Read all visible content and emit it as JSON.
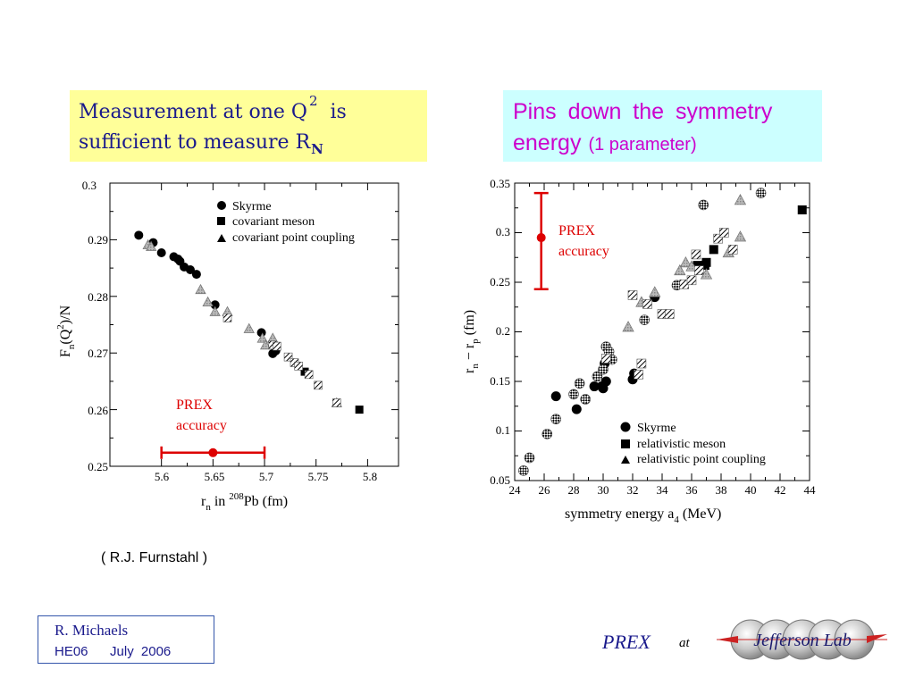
{
  "left_callout": {
    "line1_text": "Measurement  at  one  Q",
    "line1_sup": "2",
    "line1_end": "is",
    "line2_text": "sufficient  to  measure  R",
    "line2_sub": "N"
  },
  "right_callout": {
    "line1": "Pins  down  the  symmetry",
    "line2_a": "energy",
    "line2_b": "(1 parameter)"
  },
  "citation": "( R.J.  Furnstahl )",
  "author_box": {
    "name": "R.  Michaels",
    "conference": "HE06",
    "date": "July  2006"
  },
  "footer": {
    "prex": "PREX",
    "at": "at",
    "logo_text": "Jefferson Lab"
  },
  "colors": {
    "yellow_box": "#ffff99",
    "cyan_box": "#ccffff",
    "magenta_text": "#cc00cc",
    "navy_text": "#1a1a8c",
    "prex_red": "#dd0000"
  },
  "chart_data": [
    {
      "type": "scatter",
      "title": "",
      "xlabel": "r_n in 208Pb (fm)",
      "ylabel": "F_n(Q^2)/N",
      "xlim": [
        5.55,
        5.83
      ],
      "ylim": [
        0.25,
        0.3
      ],
      "x_ticks": [
        "5.6",
        "5.65",
        "5.7",
        "5.75",
        "5.8"
      ],
      "y_ticks": [
        "0.25",
        "0.26",
        "0.27",
        "0.28",
        "0.29",
        "0.3"
      ],
      "legend_position": "top-right",
      "legend": [
        "Skyrme",
        "covariant meson",
        "covariant point coupling"
      ],
      "annotation": {
        "line1": "PREX",
        "line2": "accuracy"
      },
      "error_bar": {
        "x": 5.65,
        "xmin": 5.6,
        "xmax": 5.7,
        "y": 0.2524
      },
      "series": [
        {
          "name": "Skyrme",
          "marker": "circle",
          "points": [
            [
              5.578,
              0.2908
            ],
            [
              5.592,
              0.2895
            ],
            [
              5.6,
              0.2877
            ],
            [
              5.612,
              0.287
            ],
            [
              5.616,
              0.2866
            ],
            [
              5.618,
              0.2862
            ],
            [
              5.622,
              0.2852
            ],
            [
              5.628,
              0.2847
            ],
            [
              5.634,
              0.2839
            ],
            [
              5.652,
              0.2785
            ],
            [
              5.697,
              0.2736
            ],
            [
              5.711,
              0.2704
            ],
            [
              5.708,
              0.2699
            ]
          ]
        },
        {
          "name": "covariant meson",
          "marker": "square",
          "points": [
            [
              5.739,
              0.2667
            ],
            [
              5.792,
              0.26
            ]
          ]
        },
        {
          "name": "covariant point coupling",
          "marker": "triangle",
          "points": [
            [
              5.587,
              0.2891
            ],
            [
              5.59,
              0.2888
            ],
            [
              5.638,
              0.2812
            ],
            [
              5.645,
              0.279
            ],
            [
              5.652,
              0.2773
            ],
            [
              5.664,
              0.2773
            ],
            [
              5.685,
              0.2743
            ],
            [
              5.698,
              0.2726
            ],
            [
              5.701,
              0.2714
            ],
            [
              5.708,
              0.2726
            ],
            [
              5.77,
              0.2612
            ]
          ]
        },
        {
          "name": "hatched",
          "marker": "hatched-square",
          "points": [
            [
              5.664,
              0.2762
            ],
            [
              5.708,
              0.2714
            ],
            [
              5.712,
              0.2712
            ],
            [
              5.723,
              0.2693
            ],
            [
              5.729,
              0.2683
            ],
            [
              5.733,
              0.2677
            ],
            [
              5.743,
              0.2662
            ],
            [
              5.752,
              0.2643
            ],
            [
              5.77,
              0.2612
            ]
          ]
        }
      ]
    },
    {
      "type": "scatter",
      "title": "",
      "xlabel": "symmetry energy a_4 (MeV)",
      "ylabel": "r_n - r_p (fm)",
      "xlim": [
        24,
        44
      ],
      "ylim": [
        0.05,
        0.35
      ],
      "x_ticks": [
        "24",
        "26",
        "28",
        "30",
        "32",
        "34",
        "36",
        "38",
        "40",
        "42",
        "44"
      ],
      "y_ticks": [
        "0.05",
        "0.1",
        "0.15",
        "0.2",
        "0.25",
        "0.3",
        "0.35"
      ],
      "legend_position": "bottom-right",
      "legend": [
        "Skyrme",
        "relativistic meson",
        "relativistic point coupling"
      ],
      "annotation": {
        "line1": "PREX",
        "line2": "accuracy"
      },
      "error_bar": {
        "x": 25.8,
        "y": 0.295,
        "ymin": 0.243,
        "ymax": 0.34
      },
      "series": [
        {
          "name": "Skyrme",
          "marker": "circle",
          "points": [
            [
              26.8,
              0.135
            ],
            [
              28.2,
              0.122
            ],
            [
              29.4,
              0.145
            ],
            [
              29.9,
              0.145
            ],
            [
              30,
              0.143
            ],
            [
              30.2,
              0.15
            ],
            [
              30.1,
              0.168
            ],
            [
              32,
              0.152
            ],
            [
              32.1,
              0.158
            ],
            [
              33.5,
              0.235
            ]
          ]
        },
        {
          "name": "relativistic meson",
          "marker": "square",
          "points": [
            [
              36.4,
              0.267
            ],
            [
              36.9,
              0.267
            ],
            [
              37,
              0.27
            ],
            [
              37.5,
              0.283
            ],
            [
              43.5,
              0.323
            ]
          ]
        },
        {
          "name": "relativistic point coupling",
          "marker": "triangle",
          "points": [
            [
              31.7,
              0.205
            ],
            [
              32.6,
              0.23
            ],
            [
              33.5,
              0.24
            ],
            [
              35.2,
              0.262
            ],
            [
              35.6,
              0.27
            ],
            [
              36,
              0.266
            ],
            [
              37,
              0.258
            ],
            [
              38.5,
              0.28
            ],
            [
              39.3,
              0.296
            ],
            [
              39.3,
              0.333
            ]
          ]
        },
        {
          "name": "checkered",
          "marker": "checker-circle",
          "points": [
            [
              24.6,
              0.06
            ],
            [
              25,
              0.073
            ],
            [
              26.2,
              0.097
            ],
            [
              26.8,
              0.112
            ],
            [
              28,
              0.137
            ],
            [
              28.4,
              0.148
            ],
            [
              28.8,
              0.132
            ],
            [
              29.6,
              0.155
            ],
            [
              30,
              0.162
            ],
            [
              30.2,
              0.185
            ],
            [
              30.4,
              0.18
            ],
            [
              30.6,
              0.172
            ],
            [
              32.8,
              0.212
            ],
            [
              35,
              0.247
            ],
            [
              36.8,
              0.328
            ],
            [
              40.7,
              0.34
            ]
          ]
        },
        {
          "name": "hatched",
          "marker": "hatched-square",
          "points": [
            [
              30.2,
              0.173
            ],
            [
              32,
              0.237
            ],
            [
              32.4,
              0.157
            ],
            [
              32.6,
              0.168
            ],
            [
              33,
              0.228
            ],
            [
              34,
              0.218
            ],
            [
              34.5,
              0.218
            ],
            [
              35.5,
              0.248
            ],
            [
              36,
              0.252
            ],
            [
              36.3,
              0.278
            ],
            [
              36.5,
              0.262
            ],
            [
              37.8,
              0.294
            ],
            [
              38.2,
              0.3
            ],
            [
              38.8,
              0.283
            ]
          ]
        }
      ]
    }
  ]
}
